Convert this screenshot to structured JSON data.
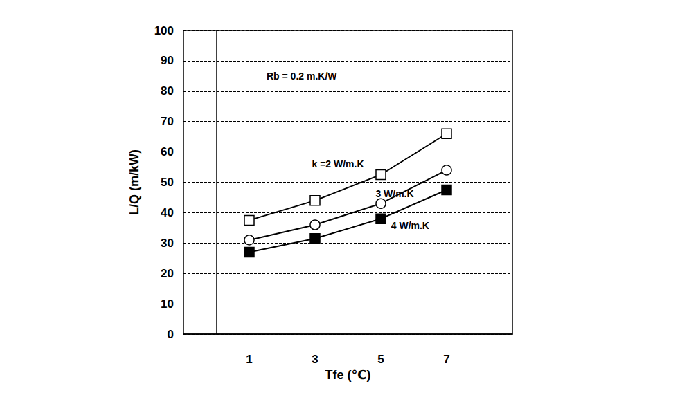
{
  "chart_data": {
    "type": "line",
    "x_label": "Tfe (℃)",
    "y_label": "L/Q (m/kW)",
    "annotations": [
      "Rb = 0.2 m.K/W"
    ],
    "x": [
      1,
      3,
      5,
      7
    ],
    "series": [
      {
        "name": "k =2 W/m.K",
        "color": "#000000",
        "marker": "square-open",
        "line_style": "solid",
        "values": [
          37.5,
          44,
          52.5,
          66
        ]
      },
      {
        "name": "3 W/m.K",
        "color": "#000000",
        "marker": "circle-open",
        "line_style": "solid",
        "values": [
          31,
          36,
          43,
          54
        ]
      },
      {
        "name": "4 W/m.K",
        "color": "#000000",
        "marker": "square",
        "line_style": "solid",
        "values": [
          27,
          31.5,
          38,
          47.5
        ]
      }
    ],
    "xlim": [
      -1,
      9
    ],
    "xticks": [
      1,
      3,
      5,
      7
    ],
    "ylim": [
      0,
      100
    ],
    "yticks": [
      0,
      10,
      20,
      30,
      40,
      50,
      60,
      70,
      80,
      90,
      100
    ],
    "grid": true
  }
}
